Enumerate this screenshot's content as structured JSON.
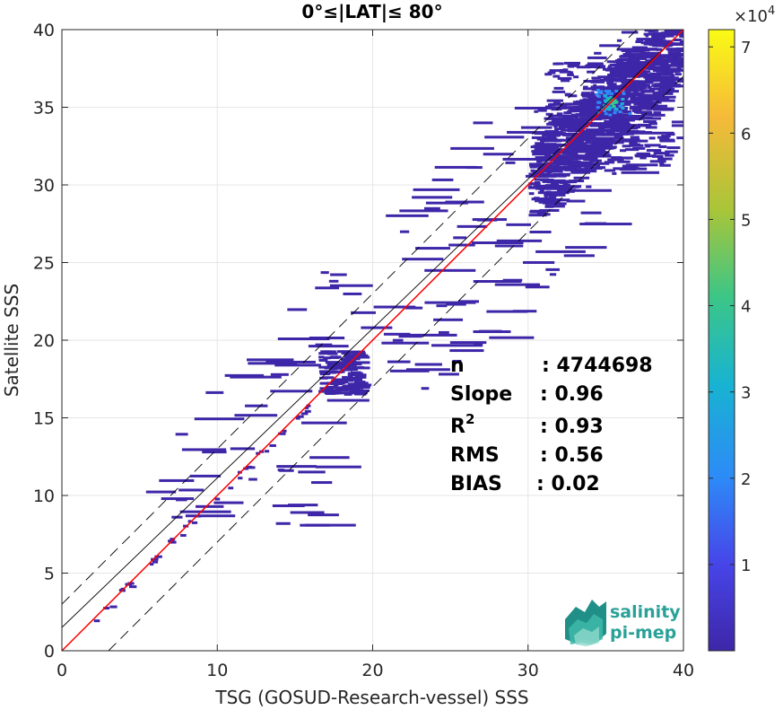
{
  "chart_data": {
    "type": "heatmap",
    "title": "0°≤|LAT|≤ 80°",
    "xlabel": "TSG (GOSUD-Research-vessel) SSS",
    "ylabel": "Satellite SSS",
    "xlim": [
      0,
      40
    ],
    "ylim": [
      0,
      40
    ],
    "xticks": [
      0,
      10,
      20,
      30,
      40
    ],
    "yticks": [
      0,
      5,
      10,
      15,
      20,
      25,
      30,
      35,
      40
    ],
    "grid": true,
    "colorbar": {
      "ticks": [
        1,
        2,
        3,
        4,
        5,
        6,
        7
      ],
      "exponent": "×10",
      "exponent_power": "4",
      "range": [
        0,
        72000
      ],
      "colormap": "parula"
    },
    "lines": [
      {
        "kind": "identity",
        "color": "#000000",
        "style": "solid",
        "x": [
          0,
          40
        ],
        "y": [
          0,
          40
        ]
      },
      {
        "kind": "identity+3",
        "color": "#000000",
        "style": "dashed",
        "x": [
          0,
          37
        ],
        "y": [
          3,
          40
        ]
      },
      {
        "kind": "identity-3",
        "color": "#000000",
        "style": "dashed",
        "x": [
          3,
          40
        ],
        "y": [
          0,
          37
        ]
      },
      {
        "kind": "fit",
        "color": "#000000",
        "style": "solid",
        "x": [
          0,
          40
        ],
        "y": [
          1.5,
          40
        ]
      },
      {
        "kind": "regression",
        "color": "#ff0000",
        "style": "solid",
        "x": [
          0,
          40
        ],
        "y": [
          0,
          40
        ]
      }
    ],
    "density_regions": [
      {
        "x": [
          30,
          40
        ],
        "y": [
          30,
          40
        ],
        "level": "low-mid"
      },
      {
        "x": [
          34.5,
          36.5
        ],
        "y": [
          34,
          36.5
        ],
        "level": "high"
      },
      {
        "x": [
          16.5,
          19
        ],
        "y": [
          16,
          19.5
        ],
        "level": "low"
      }
    ],
    "stats": [
      {
        "label": "n",
        "value": ": 4744698"
      },
      {
        "label": "Slope",
        "value": ": 0.96"
      },
      {
        "label": "R",
        "sup": "2",
        "value": ": 0.93"
      },
      {
        "label": "RMS",
        "value": ": 0.56"
      },
      {
        "label": "BIAS",
        "value": ": 0.02"
      }
    ]
  },
  "logo": {
    "line1": "salinity",
    "line2": "pi-mep"
  },
  "colors": {
    "scatter_low": "#3e26a8",
    "parula_stops": [
      "#3e26a8",
      "#4745e9",
      "#2d8bf7",
      "#18b3d1",
      "#3cc687",
      "#a9c538",
      "#f6ba39",
      "#f9fb15"
    ],
    "regression": "#ff0000",
    "grid": "#e6e6e6"
  }
}
